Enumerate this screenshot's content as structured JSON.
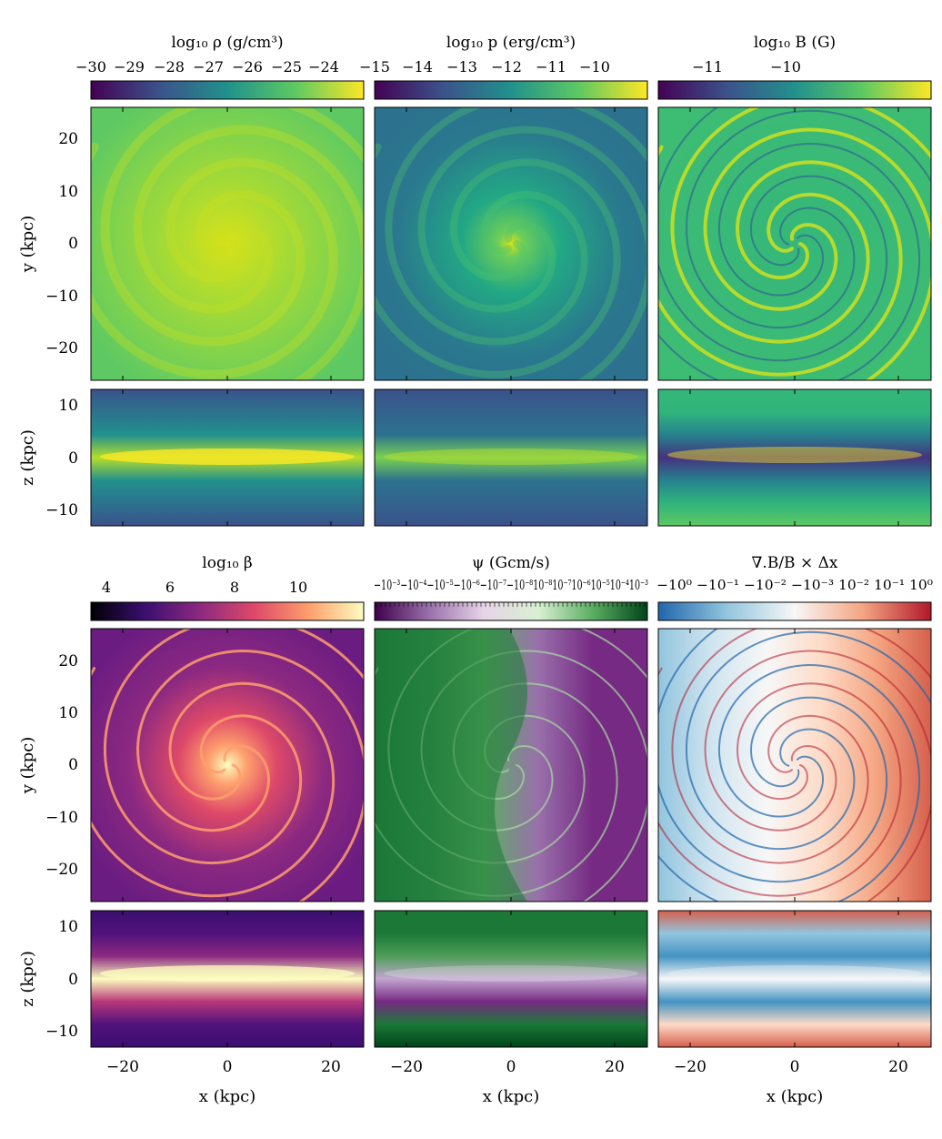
{
  "figure": {
    "ylabel_face": "y (kpc)",
    "ylabel_edge": "z (kpc)",
    "xlabel": "x (kpc)",
    "x_ticks": [
      "−20",
      "0",
      "20"
    ],
    "y_ticks_face": [
      "20",
      "10",
      "0",
      "−10",
      "−20"
    ],
    "y_ticks_edge": [
      "10",
      "0",
      "−10"
    ]
  },
  "panels": [
    {
      "key": "density",
      "title": "log₁₀ ρ (g/cm³)",
      "colormap": "viridis",
      "cbar_ticks": [
        "−30",
        "−29",
        "−28",
        "−27",
        "−26",
        "−25",
        "−24"
      ],
      "colors": [
        "#440154",
        "#3b528b",
        "#21918c",
        "#5ec962",
        "#fde725"
      ]
    },
    {
      "key": "pressure",
      "title": "log₁₀ p (erg/cm³)",
      "colormap": "viridis",
      "cbar_ticks": [
        "−15",
        "−14",
        "−13",
        "−12",
        "−11",
        "−10"
      ],
      "colors": [
        "#440154",
        "#3b528b",
        "#21918c",
        "#5ec962",
        "#fde725"
      ]
    },
    {
      "key": "magnetic",
      "title": "log₁₀ B (G)",
      "colormap": "viridis",
      "cbar_ticks": [
        "−11",
        "−10"
      ],
      "colors": [
        "#440154",
        "#3b528b",
        "#21918c",
        "#5ec962",
        "#fde725"
      ]
    },
    {
      "key": "beta",
      "title": "log₁₀ β",
      "colormap": "magma",
      "cbar_ticks": [
        "4",
        "6",
        "8",
        "10"
      ],
      "colors": [
        "#000004",
        "#3b0f70",
        "#8c2981",
        "#de4968",
        "#fe9f6d",
        "#fcfdbf"
      ]
    },
    {
      "key": "psi",
      "title": "ψ (Gcm/s)",
      "colormap": "PRGn",
      "cbar_ticks_text": "−10⁻³−10⁻⁴−10⁻⁵−10⁻⁶−10⁻⁷−10⁻⁸10⁻⁸10⁻⁷10⁻⁶10⁻⁵10⁻⁴10⁻³",
      "colors": [
        "#40004b",
        "#9970ab",
        "#e7d4e8",
        "#d9f0d3",
        "#5aae61",
        "#00441b"
      ]
    },
    {
      "key": "divb",
      "title": "∇.B/B × Δx",
      "colormap": "RdBu_r",
      "cbar_ticks_text": "−10⁰ −10⁻¹ −10⁻² −10⁻³ 10⁻² 10⁻¹ 10⁰",
      "colors": [
        "#2166ac",
        "#92c5de",
        "#f7f7f7",
        "#f4a582",
        "#b2182b"
      ]
    }
  ]
}
